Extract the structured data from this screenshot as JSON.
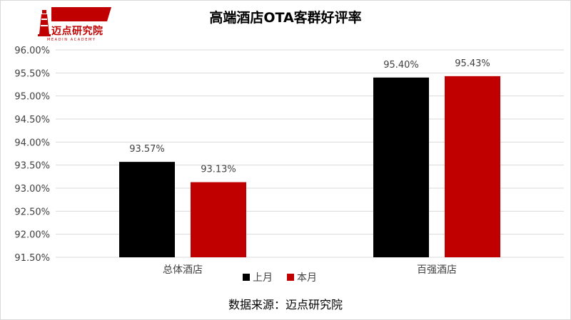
{
  "logo": {
    "name": "迈点研究院",
    "subtitle": "MEADIN ACADEMY"
  },
  "colors": {
    "last_month": "#000000",
    "this_month": "#c00000",
    "grid": "#d9d9d9",
    "text": "#404040"
  },
  "chart_data": {
    "type": "bar",
    "title": "高端酒店OTA客群好评率",
    "categories": [
      "总体酒店",
      "百强酒店"
    ],
    "series": [
      {
        "name": "上月",
        "values": [
          93.57,
          95.4
        ],
        "labels": [
          "93.57%",
          "95.40%"
        ]
      },
      {
        "name": "本月",
        "values": [
          93.13,
          95.43
        ],
        "labels": [
          "93.13%",
          "95.43%"
        ]
      }
    ],
    "ylim": [
      91.5,
      96.0
    ],
    "yticks": [
      "91.50%",
      "92.00%",
      "92.50%",
      "93.00%",
      "93.50%",
      "94.00%",
      "94.50%",
      "95.00%",
      "95.50%",
      "96.00%"
    ],
    "grid": true,
    "legend": "bottom",
    "source": "数据来源：迈点研究院"
  }
}
